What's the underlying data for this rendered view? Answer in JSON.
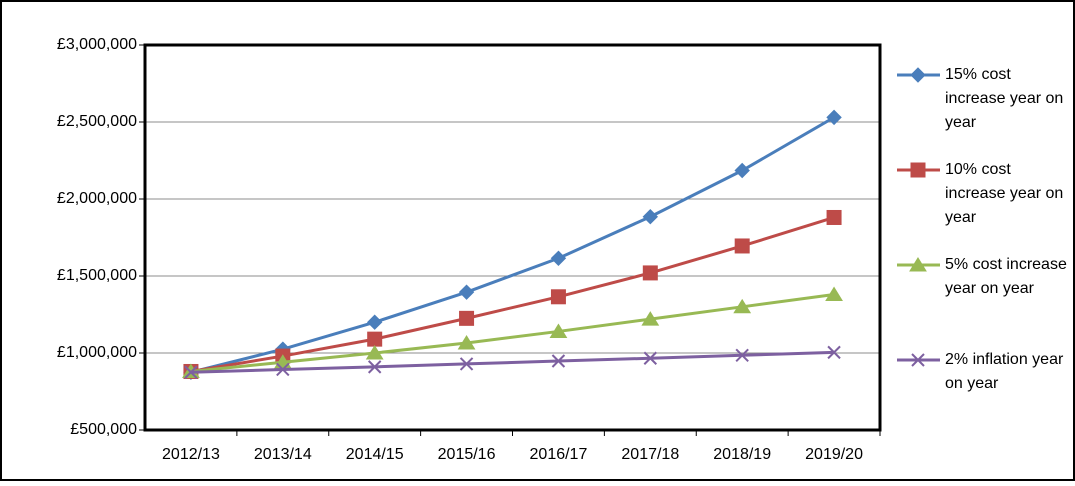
{
  "chart_data": {
    "type": "line",
    "categories": [
      "2012/13",
      "2013/14",
      "2014/15",
      "2015/16",
      "2016/17",
      "2017/18",
      "2018/19",
      "2019/20"
    ],
    "series": [
      {
        "name": "15% cost increase year on year",
        "color": "#4a7ebb",
        "marker": "diamond",
        "values": [
          875000,
          1025000,
          1200000,
          1395000,
          1615000,
          1885000,
          2185000,
          2530000
        ]
      },
      {
        "name": "10% cost increase year on year",
        "color": "#be4b48",
        "marker": "square",
        "values": [
          880000,
          980000,
          1090000,
          1225000,
          1365000,
          1520000,
          1695000,
          1880000
        ]
      },
      {
        "name": "5% cost increase year on year",
        "color": "#98b954",
        "marker": "triangle",
        "values": [
          880000,
          940000,
          1000000,
          1065000,
          1140000,
          1220000,
          1300000,
          1380000
        ]
      },
      {
        "name": "2% inflation year on year",
        "color": "#7d60a0",
        "marker": "x",
        "values": [
          875000,
          893000,
          910000,
          929000,
          948000,
          966000,
          985000,
          1004000
        ]
      }
    ],
    "ylim": [
      500000,
      3000000
    ],
    "yticks": [
      {
        "value": 500000,
        "label": "£500,000"
      },
      {
        "value": 1000000,
        "label": "£1,000,000"
      },
      {
        "value": 1500000,
        "label": "£1,500,000"
      },
      {
        "value": 2000000,
        "label": "£2,000,000"
      },
      {
        "value": 2500000,
        "label": "£2,500,000"
      },
      {
        "value": 3000000,
        "label": "£3,000,000"
      }
    ],
    "grid": true
  }
}
